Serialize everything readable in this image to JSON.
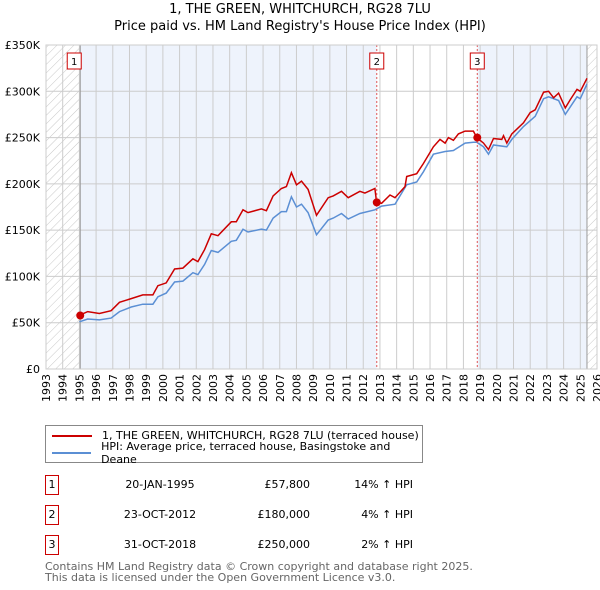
{
  "title": "1, THE GREEN, WHITCHURCH, RG28 7LU",
  "subtitle": "Price paid vs. HM Land Registry's House Price Index (HPI)",
  "chart_data": {
    "type": "line",
    "xlim": [
      1993,
      2026
    ],
    "ylim": [
      0,
      350000
    ],
    "x_ticks": [
      "1993",
      "1994",
      "1995",
      "1996",
      "1997",
      "1998",
      "1999",
      "2000",
      "2001",
      "2002",
      "2003",
      "2004",
      "2005",
      "2006",
      "2007",
      "2008",
      "2009",
      "2010",
      "2011",
      "2012",
      "2013",
      "2014",
      "2015",
      "2016",
      "2017",
      "2018",
      "2019",
      "2020",
      "2021",
      "2022",
      "2023",
      "2024",
      "2025",
      "2026"
    ],
    "y_ticks": [
      {
        "v": 0,
        "label": "£0"
      },
      {
        "v": 50000,
        "label": "£50K"
      },
      {
        "v": 100000,
        "label": "£100K"
      },
      {
        "v": 150000,
        "label": "£150K"
      },
      {
        "v": 200000,
        "label": "£200K"
      },
      {
        "v": 250000,
        "label": "£250K"
      },
      {
        "v": 300000,
        "label": "£300K"
      },
      {
        "v": 350000,
        "label": "£350K"
      }
    ],
    "grid": true,
    "colors": {
      "property": "#cc0000",
      "hpi": "#5b8fd4",
      "shade": "#eef3fc",
      "hatch": "#bbbbbb"
    },
    "data_range": [
      1995.05,
      2025.4
    ],
    "series": [
      {
        "name": "1, THE GREEN, WHITCHURCH, RG28 7LU (terraced house)",
        "key": "property",
        "points": [
          [
            1995.0,
            58
          ],
          [
            1995.5,
            62
          ],
          [
            1996.2,
            60
          ],
          [
            1996.9,
            63
          ],
          [
            1997.4,
            72
          ],
          [
            1998.1,
            76
          ],
          [
            1998.8,
            80
          ],
          [
            1999.4,
            80
          ],
          [
            1999.7,
            90
          ],
          [
            2000.2,
            93
          ],
          [
            2000.7,
            108
          ],
          [
            2001.2,
            109
          ],
          [
            2001.8,
            119
          ],
          [
            2002.1,
            116
          ],
          [
            2002.5,
            129
          ],
          [
            2002.9,
            146
          ],
          [
            2003.3,
            144
          ],
          [
            2004.1,
            159
          ],
          [
            2004.4,
            159
          ],
          [
            2004.8,
            172
          ],
          [
            2005.1,
            169
          ],
          [
            2005.9,
            173
          ],
          [
            2006.2,
            171
          ],
          [
            2006.6,
            187
          ],
          [
            2007.1,
            195
          ],
          [
            2007.4,
            197
          ],
          [
            2007.7,
            212
          ],
          [
            2008.0,
            199
          ],
          [
            2008.3,
            203
          ],
          [
            2008.7,
            194
          ],
          [
            2009.2,
            166
          ],
          [
            2009.9,
            185
          ],
          [
            2010.2,
            187
          ],
          [
            2010.7,
            192
          ],
          [
            2011.1,
            185
          ],
          [
            2011.8,
            192
          ],
          [
            2012.1,
            190
          ],
          [
            2012.7,
            195
          ],
          [
            2012.8,
            180
          ],
          [
            2013.1,
            179
          ],
          [
            2013.6,
            188
          ],
          [
            2013.9,
            185
          ],
          [
            2014.5,
            197
          ],
          [
            2014.6,
            208
          ],
          [
            2015.2,
            211
          ],
          [
            2015.6,
            222
          ],
          [
            2016.2,
            240
          ],
          [
            2016.6,
            248
          ],
          [
            2016.9,
            244
          ],
          [
            2017.1,
            250
          ],
          [
            2017.4,
            247
          ],
          [
            2017.7,
            254
          ],
          [
            2018.1,
            257
          ],
          [
            2018.6,
            257
          ],
          [
            2018.8,
            250
          ],
          [
            2019.2,
            244
          ],
          [
            2019.5,
            237
          ],
          [
            2019.8,
            249
          ],
          [
            2020.3,
            248
          ],
          [
            2020.4,
            252
          ],
          [
            2020.6,
            244
          ],
          [
            2020.9,
            254
          ],
          [
            2021.6,
            266
          ],
          [
            2022.0,
            277
          ],
          [
            2022.3,
            280
          ],
          [
            2022.8,
            299
          ],
          [
            2023.1,
            300
          ],
          [
            2023.4,
            293
          ],
          [
            2023.7,
            298
          ],
          [
            2024.1,
            282
          ],
          [
            2024.4,
            291
          ],
          [
            2024.8,
            302
          ],
          [
            2025.0,
            300
          ],
          [
            2025.4,
            314
          ]
        ]
      },
      {
        "name": "HPI: Average price, terraced house, Basingstoke and Deane",
        "key": "hpi",
        "points": [
          [
            1995.0,
            51
          ],
          [
            1995.5,
            54
          ],
          [
            1996.2,
            53
          ],
          [
            1996.9,
            55
          ],
          [
            1997.4,
            62
          ],
          [
            1998.1,
            67
          ],
          [
            1998.8,
            70
          ],
          [
            1999.4,
            70
          ],
          [
            1999.7,
            78
          ],
          [
            2000.2,
            82
          ],
          [
            2000.7,
            94
          ],
          [
            2001.2,
            95
          ],
          [
            2001.8,
            104
          ],
          [
            2002.1,
            102
          ],
          [
            2002.5,
            113
          ],
          [
            2002.9,
            128
          ],
          [
            2003.3,
            126
          ],
          [
            2004.1,
            138
          ],
          [
            2004.4,
            139
          ],
          [
            2004.8,
            151
          ],
          [
            2005.1,
            148
          ],
          [
            2005.9,
            151
          ],
          [
            2006.2,
            150
          ],
          [
            2006.6,
            163
          ],
          [
            2007.1,
            170
          ],
          [
            2007.4,
            170
          ],
          [
            2007.7,
            186
          ],
          [
            2008.0,
            175
          ],
          [
            2008.3,
            178
          ],
          [
            2008.7,
            169
          ],
          [
            2009.2,
            145
          ],
          [
            2009.9,
            161
          ],
          [
            2010.2,
            163
          ],
          [
            2010.7,
            168
          ],
          [
            2011.1,
            162
          ],
          [
            2011.8,
            168
          ],
          [
            2012.7,
            172
          ],
          [
            2013.1,
            176
          ],
          [
            2013.9,
            178
          ],
          [
            2014.6,
            199
          ],
          [
            2015.2,
            202
          ],
          [
            2015.6,
            213
          ],
          [
            2016.2,
            232
          ],
          [
            2016.9,
            235
          ],
          [
            2017.4,
            236
          ],
          [
            2018.1,
            244
          ],
          [
            2018.6,
            245
          ],
          [
            2018.8,
            245
          ],
          [
            2019.2,
            240
          ],
          [
            2019.5,
            232
          ],
          [
            2019.8,
            242
          ],
          [
            2020.6,
            240
          ],
          [
            2020.9,
            248
          ],
          [
            2021.6,
            262
          ],
          [
            2022.3,
            273
          ],
          [
            2022.8,
            292
          ],
          [
            2023.1,
            294
          ],
          [
            2023.7,
            290
          ],
          [
            2024.1,
            275
          ],
          [
            2024.8,
            294
          ],
          [
            2025.0,
            292
          ],
          [
            2025.4,
            308
          ]
        ]
      }
    ],
    "sales": [
      {
        "label": "1",
        "x": 1995.05,
        "value": 57800
      },
      {
        "label": "2",
        "x": 2012.81,
        "value": 180000
      },
      {
        "label": "3",
        "x": 2018.83,
        "value": 250000
      }
    ]
  },
  "legend": {
    "property": "1, THE GREEN, WHITCHURCH, RG28 7LU (terraced house)",
    "hpi": "HPI: Average price, terraced house, Basingstoke and Deane"
  },
  "transactions": [
    {
      "num": "1",
      "date": "20-JAN-1995",
      "price": "£57,800",
      "hpi": "14% ↑ HPI"
    },
    {
      "num": "2",
      "date": "23-OCT-2012",
      "price": "£180,000",
      "hpi": "4% ↑ HPI"
    },
    {
      "num": "3",
      "date": "31-OCT-2018",
      "price": "£250,000",
      "hpi": "2% ↑ HPI"
    }
  ],
  "footer": [
    "Contains HM Land Registry data © Crown copyright and database right 2025.",
    "This data is licensed under the Open Government Licence v3.0."
  ]
}
